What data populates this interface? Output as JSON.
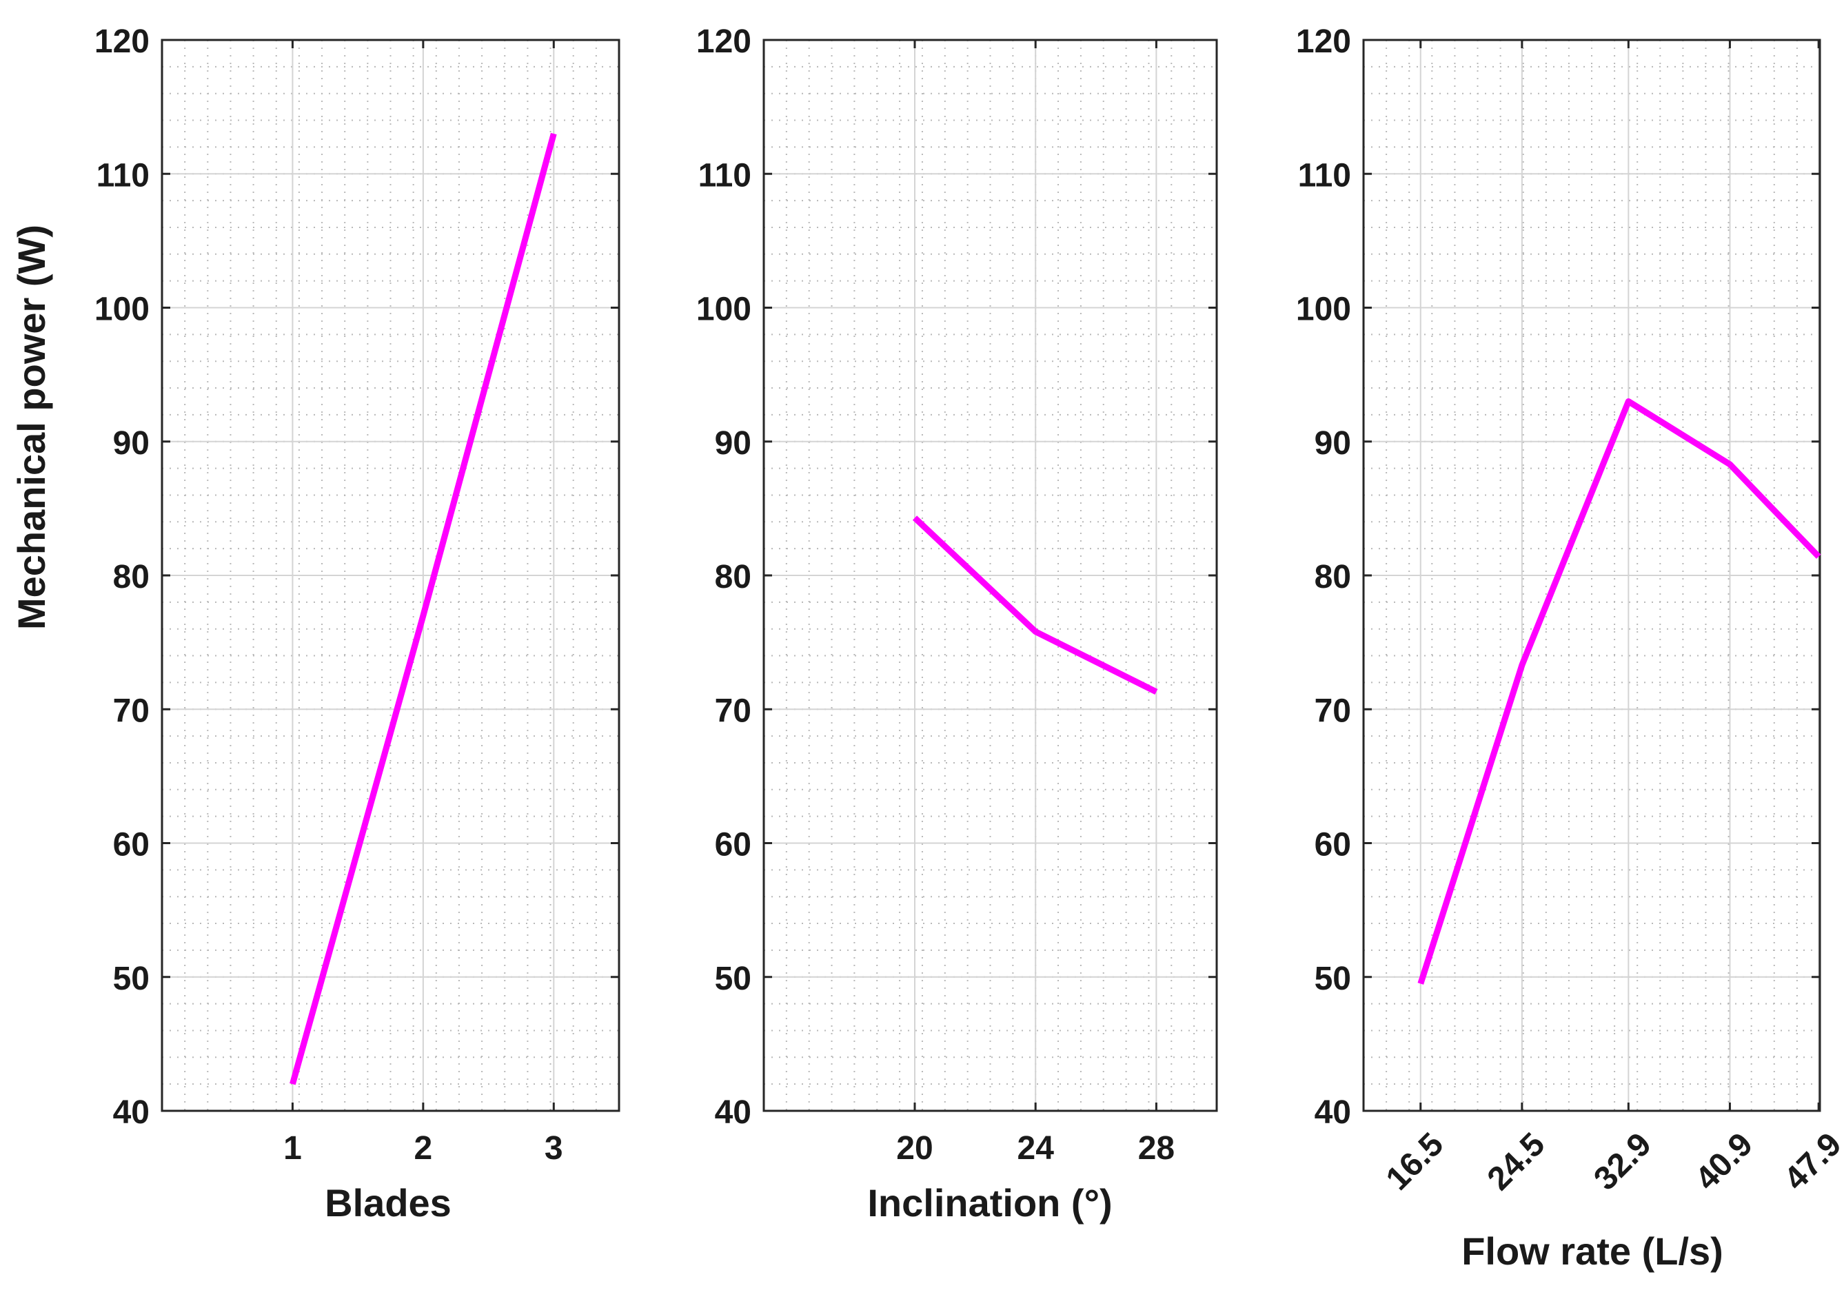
{
  "chart_data": [
    {
      "type": "line",
      "xlabel": "Blades",
      "ylabel": "Mechanical power (W)",
      "xlim": [
        0,
        3.5
      ],
      "ylim": [
        40,
        120
      ],
      "xticks": [
        1,
        2,
        3
      ],
      "xtick_labels": [
        "1",
        "2",
        "3"
      ],
      "yticks": [
        40,
        50,
        60,
        70,
        80,
        90,
        100,
        110,
        120
      ],
      "ytick_labels": [
        "40",
        "50",
        "60",
        "70",
        "80",
        "90",
        "100",
        "110",
        "120"
      ],
      "grid": true,
      "x": [
        1,
        2,
        3
      ],
      "series": [
        {
          "values": [
            42,
            77,
            113
          ]
        }
      ]
    },
    {
      "type": "line",
      "xlabel": "Inclination (°)",
      "ylabel": "",
      "xlim": [
        15,
        30
      ],
      "ylim": [
        40,
        120
      ],
      "xticks": [
        20,
        24,
        28
      ],
      "xtick_labels": [
        "20",
        "24",
        "28"
      ],
      "yticks": [
        40,
        50,
        60,
        70,
        80,
        90,
        100,
        110,
        120
      ],
      "ytick_labels": [
        "40",
        "50",
        "60",
        "70",
        "80",
        "90",
        "100",
        "110",
        "120"
      ],
      "grid": true,
      "x": [
        20,
        24,
        28
      ],
      "series": [
        {
          "values": [
            84.3,
            75.8,
            71.3
          ]
        }
      ]
    },
    {
      "type": "line",
      "xlabel": "Flow rate (L/s)",
      "ylabel": "",
      "xlim": [
        12,
        48
      ],
      "ylim": [
        40,
        120
      ],
      "xticks": [
        16.5,
        24.5,
        32.9,
        40.9,
        47.9
      ],
      "xtick_labels": [
        "16.5",
        "24.5",
        "32.9",
        "40.9",
        "47.9"
      ],
      "xtick_rotation": 45,
      "yticks": [
        40,
        50,
        60,
        70,
        80,
        90,
        100,
        110,
        120
      ],
      "ytick_labels": [
        "40",
        "50",
        "60",
        "70",
        "80",
        "90",
        "100",
        "110",
        "120"
      ],
      "grid": true,
      "x": [
        16.5,
        24.5,
        32.9,
        40.9,
        47.9
      ],
      "series": [
        {
          "values": [
            49.5,
            73.3,
            93,
            88.3,
            81.4
          ]
        }
      ]
    }
  ],
  "colors": {
    "line": "#ff00ff",
    "axis": "#262626",
    "major_grid": "#d4d4d4",
    "minor_grid": "#b8b8b8"
  }
}
